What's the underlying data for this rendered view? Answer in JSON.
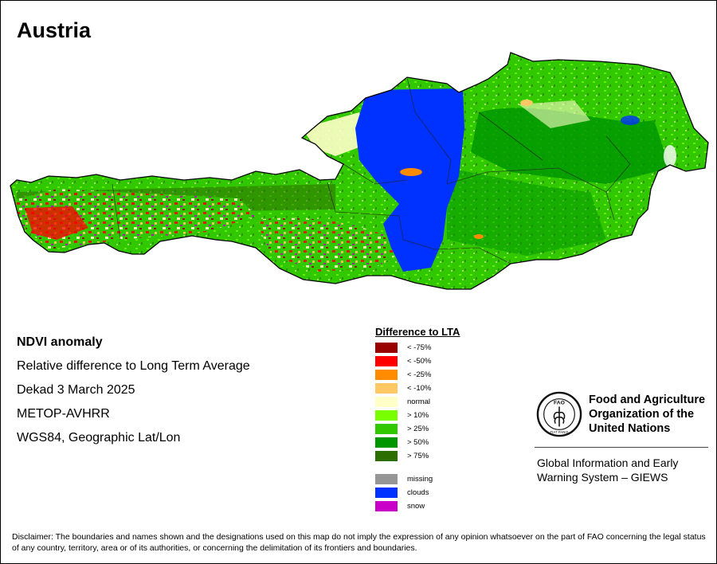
{
  "map": {
    "title": "Austria",
    "info_lines": [
      "NDVI anomaly",
      "Relative difference to Long Term Average",
      "Dekad 3 March 2025",
      "METOP-AVHRR",
      "WGS84, Geographic Lat/Lon"
    ]
  },
  "legend": {
    "title": "Difference to LTA",
    "items": [
      {
        "label": "< -75%",
        "color": "#990000"
      },
      {
        "label": "< -50%",
        "color": "#ff0000"
      },
      {
        "label": "< -25%",
        "color": "#ff8c00"
      },
      {
        "label": "< -10%",
        "color": "#ffc864"
      },
      {
        "label": "normal",
        "color": "#ffffc8"
      },
      {
        "label": "> 10%",
        "color": "#78ff00"
      },
      {
        "label": "> 25%",
        "color": "#32c800"
      },
      {
        "label": "> 50%",
        "color": "#009600"
      },
      {
        "label": "> 75%",
        "color": "#2d6e00"
      }
    ],
    "extra_items": [
      {
        "label": "missing",
        "color": "#969696"
      },
      {
        "label": "clouds",
        "color": "#0032ff"
      },
      {
        "label": "snow",
        "color": "#c800c8"
      }
    ]
  },
  "branding": {
    "org_lines": [
      "Food and Agriculture",
      "Organization of the",
      "United Nations"
    ],
    "logo_text": "FAO",
    "logo_motto": "FIAT PANIS",
    "system_lines": [
      "Global Information and Early",
      "Warning System – GIEWS"
    ]
  },
  "disclaimer": "Disclaimer: The boundaries and names shown and the designations used on this map do not imply the expression of any opinion whatsoever on the part of FAO concerning the legal status of any country, territory, area or of its authorities, or concerning the delimitation of its frontiers and boundaries."
}
